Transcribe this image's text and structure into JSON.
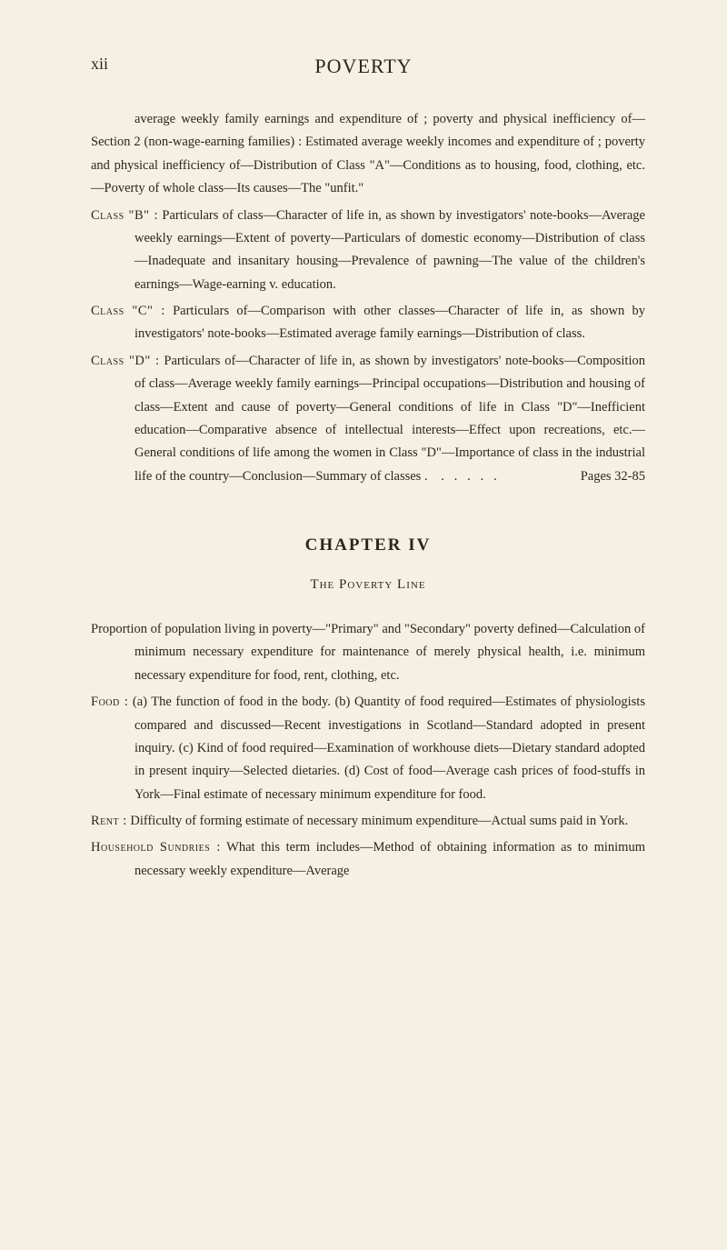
{
  "header": {
    "page_number": "xii",
    "title": "POVERTY"
  },
  "body": {
    "intro": "average weekly family earnings and expenditure of ; poverty and physical inefficiency of—Section 2 (non-wage-earning families) : Estimated average weekly incomes and expenditure of ; poverty and physical inefficiency of—Distribution of Class \"A\"—Conditions as to housing, food, clothing, etc.—Poverty of whole class—Its causes—The \"unfit.\"",
    "class_b_label": "Class \"B\" :",
    "class_b": " Particulars of class—Character of life in, as shown by investigators' note-books—Average weekly earnings—Extent of poverty—Particulars of domestic economy—Distribution of class—Inadequate and insanitary housing—Prevalence of pawning—The value of the children's earnings—Wage-earning v. education.",
    "class_c_label": "Class \"C\" :",
    "class_c": " Particulars of—Comparison with other classes—Character of life in, as shown by investigators' note-books—Estimated average family earnings—Distribution of class.",
    "class_d_label": "Class \"D\" :",
    "class_d": " Particulars of—Character of life in, as shown by investigators' note-books—Composition of class—Average weekly family earnings—Principal occupations—Distribution and housing of class—Extent and cause of poverty—General conditions of life in Class \"D\"—Inefficient education—Comparative absence of intellectual interests—Effect upon recreations, etc.—General conditions of life among the women in Class \"D\"—Importance of class in the industrial life of the country—Conclusion—Summary of classes .",
    "class_d_pages": "Pages 32-85"
  },
  "chapter": {
    "heading": "CHAPTER IV",
    "subtitle": "The Poverty Line",
    "proportion": "Proportion of population living in poverty—\"Primary\" and \"Secondary\" poverty defined—Calculation of minimum necessary expenditure for maintenance of merely physical health, i.e. minimum necessary expenditure for food, rent, clothing, etc.",
    "food_label": "Food :",
    "food": " (a) The function of food in the body. (b) Quantity of food required—Estimates of physiologists compared and discussed—Recent investigations in Scotland—Standard adopted in present inquiry. (c) Kind of food required—Examination of workhouse diets—Dietary standard adopted in present inquiry—Selected dietaries. (d) Cost of food—Average cash prices of food-stuffs in York—Final estimate of necessary minimum expenditure for food.",
    "rent_label": "Rent :",
    "rent": " Difficulty of forming estimate of necessary minimum expenditure—Actual sums paid in York.",
    "household_label": "Household Sundries :",
    "household": " What this term includes—Method of obtaining information as to minimum necessary weekly expenditure—Average"
  }
}
